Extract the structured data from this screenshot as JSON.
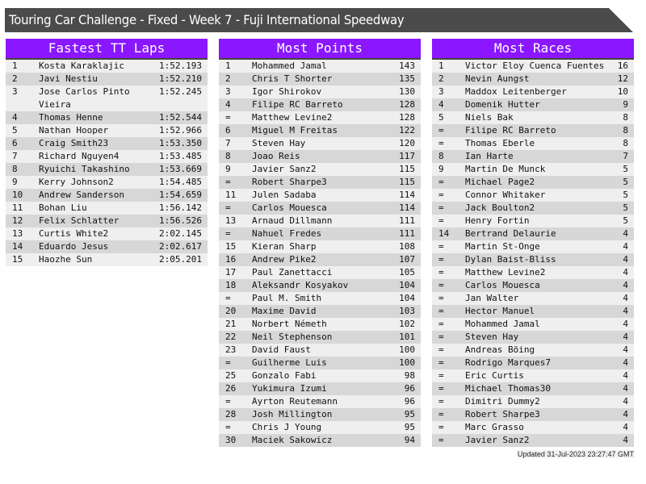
{
  "title": "Touring Car Challenge - Fixed - Week 7 - Fuji International Speedway",
  "colors": {
    "header": "#8a17ff",
    "title_bar": "#4b4b4b",
    "row_light": "#efefef",
    "row_dark": "#d7d7d7"
  },
  "tables": [
    {
      "heading": "Fastest TT Laps",
      "rows": [
        [
          "1",
          "Kosta Karaklajic",
          "1:52.193"
        ],
        [
          "2",
          "Javi Nestiu",
          "1:52.210"
        ],
        [
          "3",
          "Jose Carlos Pinto Vieira",
          "1:52.245"
        ],
        [
          "4",
          "Thomas Henne",
          "1:52.544"
        ],
        [
          "5",
          "Nathan Hooper",
          "1:52.966"
        ],
        [
          "6",
          "Craig Smith23",
          "1:53.350"
        ],
        [
          "7",
          "Richard Nguyen4",
          "1:53.485"
        ],
        [
          "8",
          "Ryuichi Takashino",
          "1:53.669"
        ],
        [
          "9",
          "Kerry Johnson2",
          "1:54.485"
        ],
        [
          "10",
          "Andrew Sanderson",
          "1:54.659"
        ],
        [
          "11",
          "Bohan Liu",
          "1:56.142"
        ],
        [
          "12",
          "Felix Schlatter",
          "1:56.526"
        ],
        [
          "13",
          "Curtis White2",
          "2:02.145"
        ],
        [
          "14",
          "Eduardo Jesus",
          "2:02.617"
        ],
        [
          "15",
          "Haozhe Sun",
          "2:05.201"
        ]
      ]
    },
    {
      "heading": "Most Points",
      "rows": [
        [
          "1",
          "Mohammed Jamal",
          "143"
        ],
        [
          "2",
          "Chris T Shorter",
          "135"
        ],
        [
          "3",
          "Igor Shirokov",
          "130"
        ],
        [
          "4",
          "Filipe RC Barreto",
          "128"
        ],
        [
          "=",
          "Matthew Levine2",
          "128"
        ],
        [
          "6",
          "Miguel M Freitas",
          "122"
        ],
        [
          "7",
          "Steven Hay",
          "120"
        ],
        [
          "8",
          "Joao Reis",
          "117"
        ],
        [
          "9",
          "Javier Sanz2",
          "115"
        ],
        [
          "=",
          "Robert Sharpe3",
          "115"
        ],
        [
          "11",
          "Julen Sadaba",
          "114"
        ],
        [
          "=",
          "Carlos Mouesca",
          "114"
        ],
        [
          "13",
          "Arnaud Dillmann",
          "111"
        ],
        [
          "=",
          "Nahuel Fredes",
          "111"
        ],
        [
          "15",
          "Kieran Sharp",
          "108"
        ],
        [
          "16",
          "Andrew Pike2",
          "107"
        ],
        [
          "17",
          "Paul Zanettacci",
          "105"
        ],
        [
          "18",
          "Aleksandr Kosyakov",
          "104"
        ],
        [
          "=",
          "Paul M. Smith",
          "104"
        ],
        [
          "20",
          "Maxime David",
          "103"
        ],
        [
          "21",
          "Norbert Németh",
          "102"
        ],
        [
          "22",
          "Neil Stephenson",
          "101"
        ],
        [
          "23",
          "David Faust",
          "100"
        ],
        [
          "=",
          "Guilherme Luis",
          "100"
        ],
        [
          "25",
          "Gonzalo Fabi",
          "98"
        ],
        [
          "26",
          "Yukimura Izumi",
          "96"
        ],
        [
          "=",
          "Ayrton Reutemann",
          "96"
        ],
        [
          "28",
          "Josh Millington",
          "95"
        ],
        [
          "=",
          "Chris J Young",
          "95"
        ],
        [
          "30",
          "Maciek Sakowicz",
          "94"
        ]
      ]
    },
    {
      "heading": "Most Races",
      "rows": [
        [
          "1",
          "Victor Eloy Cuenca Fuentes",
          "16"
        ],
        [
          "2",
          "Nevin Aungst",
          "12"
        ],
        [
          "3",
          "Maddox Leitenberger",
          "10"
        ],
        [
          "4",
          "Domenik Hutter",
          "9"
        ],
        [
          "5",
          "Niels Bak",
          "8"
        ],
        [
          "=",
          "Filipe RC Barreto",
          "8"
        ],
        [
          "=",
          "Thomas Eberle",
          "8"
        ],
        [
          "8",
          "Ian Harte",
          "7"
        ],
        [
          "9",
          "Martin De Munck",
          "5"
        ],
        [
          "=",
          "Michael Page2",
          "5"
        ],
        [
          "=",
          "Connor Whitaker",
          "5"
        ],
        [
          "=",
          "Jack Boulton2",
          "5"
        ],
        [
          "=",
          "Henry Fortin",
          "5"
        ],
        [
          "14",
          "Bertrand Delaurie",
          "4"
        ],
        [
          "=",
          "Martin St-Onge",
          "4"
        ],
        [
          "=",
          "Dylan Baist-Bliss",
          "4"
        ],
        [
          "=",
          "Matthew Levine2",
          "4"
        ],
        [
          "=",
          "Carlos Mouesca",
          "4"
        ],
        [
          "=",
          "Jan Walter",
          "4"
        ],
        [
          "=",
          "Hector Manuel",
          "4"
        ],
        [
          "=",
          "Mohammed Jamal",
          "4"
        ],
        [
          "=",
          "Steven Hay",
          "4"
        ],
        [
          "=",
          "Andreas Böing",
          "4"
        ],
        [
          "=",
          "Rodrigo Marques7",
          "4"
        ],
        [
          "=",
          "Eric Curtis",
          "4"
        ],
        [
          "=",
          "Michael Thomas30",
          "4"
        ],
        [
          "=",
          "Dimitri Dummy2",
          "4"
        ],
        [
          "=",
          "Robert Sharpe3",
          "4"
        ],
        [
          "=",
          "Marc Grasso",
          "4"
        ],
        [
          "=",
          "Javier Sanz2",
          "4"
        ]
      ]
    }
  ],
  "updated": "Updated 31-Jul-2023 23:27:47 GMT"
}
